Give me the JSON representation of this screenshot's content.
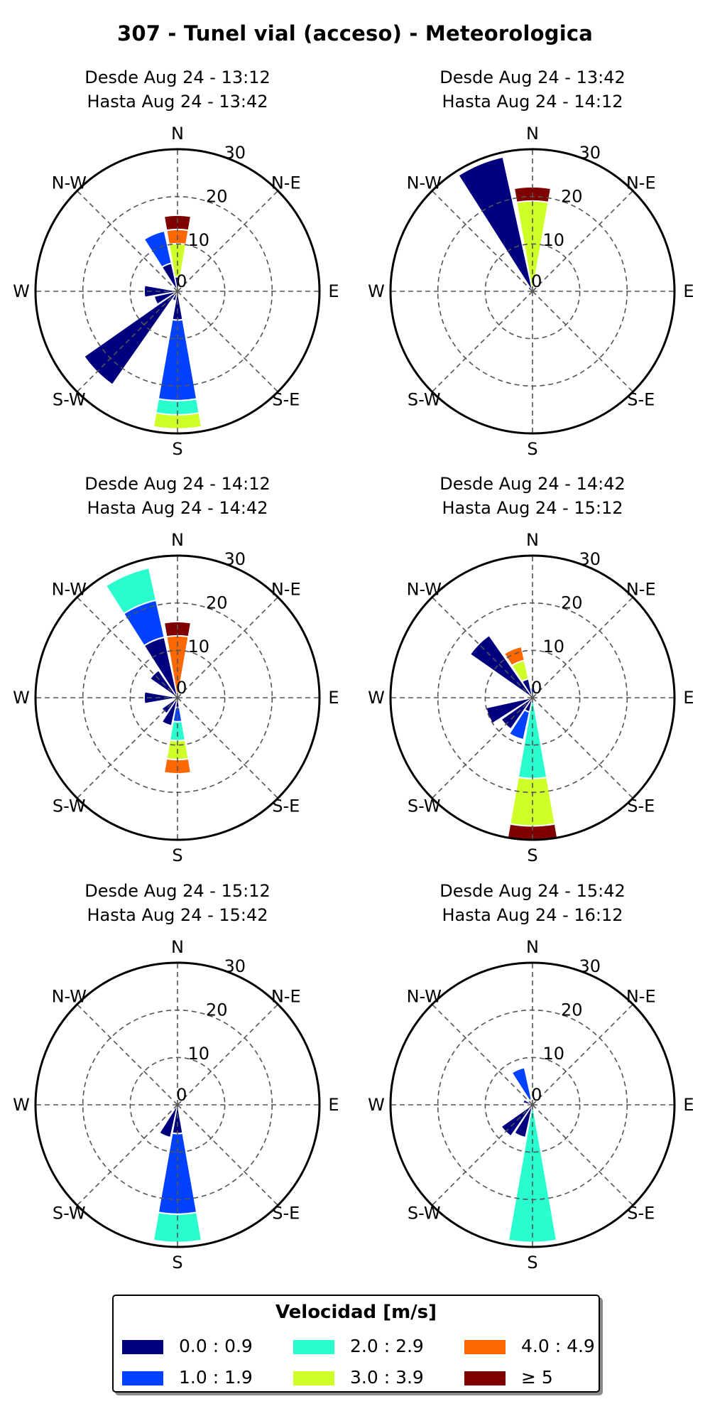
{
  "figure": {
    "title": "307 - Tunel vial (acceso) - Meteorologica"
  },
  "legend": {
    "title": "Velocidad [m/s]",
    "items": [
      {
        "label": "0.0 : 0.9",
        "color": "#00007f"
      },
      {
        "label": "1.0 : 1.9",
        "color": "#0040ff"
      },
      {
        "label": "2.0 : 2.9",
        "color": "#29ffce"
      },
      {
        "label": "3.0 : 3.9",
        "color": "#ceff29"
      },
      {
        "label": "4.0 : 4.9",
        "color": "#ff6800"
      },
      {
        "label": "≥ 5",
        "color": "#7f0000"
      }
    ]
  },
  "axes": {
    "directions": [
      "N",
      "N-E",
      "E",
      "S-E",
      "S",
      "S-W",
      "W",
      "N-W"
    ],
    "rings": [
      "0",
      "10",
      "20",
      "30"
    ]
  },
  "chart_data": [
    {
      "type": "windrose",
      "title_line1": "Desde Aug 24 - 13:12",
      "title_line2": "Hasta Aug 24 - 13:42",
      "rlim": [
        0,
        30
      ],
      "sectors": [
        {
          "dir": 0,
          "stack": [
            [
              0,
              3
            ],
            [
              1,
              0.5
            ],
            [
              3,
              10
            ],
            [
              4,
              13
            ],
            [
              5,
              16
            ]
          ]
        },
        {
          "dir": 337.5,
          "stack": [
            [
              0,
              6
            ],
            [
              1,
              13
            ]
          ]
        },
        {
          "dir": 270,
          "stack": [
            [
              0,
              7
            ]
          ]
        },
        {
          "dir": 247.5,
          "stack": [
            [
              0,
              5
            ]
          ]
        },
        {
          "dir": 225,
          "stack": [
            [
              0,
              24
            ]
          ]
        },
        {
          "dir": 202.5,
          "stack": [
            [
              0,
              2
            ]
          ]
        },
        {
          "dir": 180,
          "stack": [
            [
              0,
              6
            ],
            [
              1,
              23
            ],
            [
              2,
              26
            ],
            [
              3,
              29
            ]
          ]
        }
      ]
    },
    {
      "type": "windrose",
      "title_line1": "Desde Aug 24 - 13:42",
      "title_line2": "Hasta Aug 24 - 14:12",
      "rlim": [
        0,
        30
      ],
      "sectors": [
        {
          "dir": 0,
          "stack": [
            [
              3,
              19
            ],
            [
              5,
              22
            ]
          ]
        },
        {
          "dir": 337.5,
          "stack": [
            [
              0,
              29
            ]
          ]
        }
      ]
    },
    {
      "type": "windrose",
      "title_line1": "Desde Aug 24 - 14:12",
      "title_line2": "Hasta Aug 24 - 14:42",
      "rlim": [
        0,
        30
      ],
      "sectors": [
        {
          "dir": 0,
          "stack": [
            [
              0,
              1
            ],
            [
              4,
              13
            ],
            [
              5,
              16
            ]
          ]
        },
        {
          "dir": 337.5,
          "stack": [
            [
              0,
              13
            ],
            [
              1,
              21
            ],
            [
              2,
              28
            ]
          ]
        },
        {
          "dir": 315,
          "stack": [
            [
              0,
              7
            ]
          ]
        },
        {
          "dir": 270,
          "stack": [
            [
              0,
              7
            ]
          ]
        },
        {
          "dir": 225,
          "stack": [
            [
              0,
              4
            ]
          ]
        },
        {
          "dir": 202.5,
          "stack": [
            [
              0,
              6
            ]
          ]
        },
        {
          "dir": 180,
          "stack": [
            [
              0,
              2
            ],
            [
              1,
              5
            ],
            [
              2,
              9
            ],
            [
              3,
              13
            ],
            [
              4,
              16
            ]
          ]
        }
      ]
    },
    {
      "type": "windrose",
      "title_line1": "Desde Aug 24 - 14:42",
      "title_line2": "Hasta Aug 24 - 15:12",
      "rlim": [
        0,
        30
      ],
      "sectors": [
        {
          "dir": 0,
          "stack": [
            [
              1,
              2
            ]
          ]
        },
        {
          "dir": 337.5,
          "stack": [
            [
              0,
              4
            ],
            [
              3,
              8
            ],
            [
              4,
              11
            ]
          ]
        },
        {
          "dir": 315,
          "stack": [
            [
              0,
              16
            ]
          ]
        },
        {
          "dir": 247.5,
          "stack": [
            [
              0,
              10
            ]
          ]
        },
        {
          "dir": 225,
          "stack": [
            [
              0,
              8
            ]
          ]
        },
        {
          "dir": 202.5,
          "stack": [
            [
              0,
              3
            ],
            [
              1,
              9
            ]
          ]
        },
        {
          "dir": 180,
          "stack": [
            [
              2,
              17
            ],
            [
              3,
              27
            ],
            [
              5,
              30
            ]
          ]
        }
      ]
    },
    {
      "type": "windrose",
      "title_line1": "Desde Aug 24 - 15:12",
      "title_line2": "Hasta Aug 24 - 15:42",
      "rlim": [
        0,
        30
      ],
      "sectors": [
        {
          "dir": 202.5,
          "stack": [
            [
              0,
              7
            ]
          ]
        },
        {
          "dir": 180,
          "stack": [
            [
              0,
              6
            ],
            [
              1,
              23
            ],
            [
              2,
              29
            ]
          ]
        }
      ]
    },
    {
      "type": "windrose",
      "title_line1": "Desde Aug 24 - 15:42",
      "title_line2": "Hasta Aug 24 - 16:12",
      "rlim": [
        0,
        30
      ],
      "sectors": [
        {
          "dir": 337.5,
          "stack": [
            [
              0,
              1
            ],
            [
              1,
              8
            ]
          ]
        },
        {
          "dir": 292.5,
          "stack": [
            [
              0,
              2
            ]
          ]
        },
        {
          "dir": 225,
          "stack": [
            [
              0,
              8
            ]
          ]
        },
        {
          "dir": 202.5,
          "stack": [
            [
              0,
              7
            ]
          ]
        },
        {
          "dir": 180,
          "stack": [
            [
              2,
              29
            ]
          ]
        }
      ]
    }
  ]
}
